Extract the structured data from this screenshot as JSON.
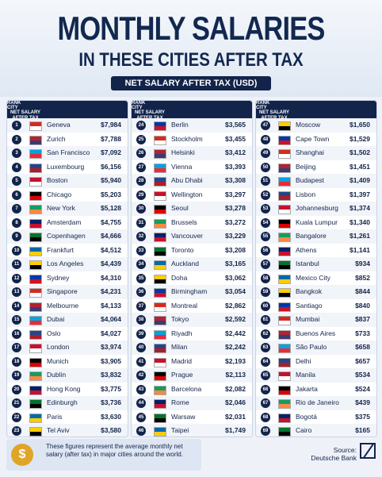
{
  "header": {
    "title": "MONTHLY SALARIES",
    "subtitle": "IN THESE CITIES AFTER TAX",
    "banner": "NET SALARY AFTER TAX (USD)"
  },
  "table": {
    "header": [
      "RANK",
      "CITY",
      "NET SALARY AFTER TAX (USD)"
    ],
    "columns": [
      [
        [
          1,
          "Geneva",
          "$7,984"
        ],
        [
          2,
          "Zurich",
          "$7,788"
        ],
        [
          3,
          "San Francisco",
          "$7,092"
        ],
        [
          4,
          "Luxembourg",
          "$6,156"
        ],
        [
          5,
          "Boston",
          "$5,940"
        ],
        [
          6,
          "Chicago",
          "$5,203"
        ],
        [
          7,
          "New York",
          "$5,128"
        ],
        [
          8,
          "Amsterdam",
          "$4,755"
        ],
        [
          9,
          "Copenhagen",
          "$4,666"
        ],
        [
          10,
          "Frankfurt",
          "$4,512"
        ],
        [
          11,
          "Los Angeles",
          "$4,439"
        ],
        [
          12,
          "Sydney",
          "$4,310"
        ],
        [
          13,
          "Singapore",
          "$4,231"
        ],
        [
          14,
          "Melbourne",
          "$4,133"
        ],
        [
          15,
          "Dubai",
          "$4,064"
        ],
        [
          16,
          "Oslo",
          "$4,027"
        ],
        [
          17,
          "London",
          "$3,974"
        ],
        [
          18,
          "Munich",
          "$3,905"
        ],
        [
          19,
          "Dublin",
          "$3,832"
        ],
        [
          20,
          "Hong Kong",
          "$3,775"
        ],
        [
          21,
          "Edinburgh",
          "$3,736"
        ],
        [
          22,
          "Paris",
          "$3,630"
        ],
        [
          23,
          "Tel Aviv",
          "$3,580"
        ]
      ],
      [
        [
          24,
          "Berlin",
          "$3,565"
        ],
        [
          25,
          "Stockholm",
          "$3,455"
        ],
        [
          26,
          "Helsinki",
          "$3,412"
        ],
        [
          27,
          "Vienna",
          "$3,393"
        ],
        [
          28,
          "Abu Dhabi",
          "$3,308"
        ],
        [
          29,
          "Wellington",
          "$3,297"
        ],
        [
          30,
          "Seoul",
          "$3,278"
        ],
        [
          31,
          "Brussels",
          "$3,272"
        ],
        [
          32,
          "Vancouver",
          "$3,229"
        ],
        [
          33,
          "Toronto",
          "$3,208"
        ],
        [
          34,
          "Auckland",
          "$3,165"
        ],
        [
          35,
          "Doha",
          "$3,062"
        ],
        [
          36,
          "Birmingham",
          "$3,054"
        ],
        [
          37,
          "Montreal",
          "$2,862"
        ],
        [
          38,
          "Tokyo",
          "$2,592"
        ],
        [
          39,
          "Riyadh",
          "$2,442"
        ],
        [
          40,
          "Milan",
          "$2,242"
        ],
        [
          41,
          "Madrid",
          "$2,193"
        ],
        [
          42,
          "Prague",
          "$2,113"
        ],
        [
          43,
          "Barcelona",
          "$2,082"
        ],
        [
          44,
          "Rome",
          "$2,046"
        ],
        [
          45,
          "Warsaw",
          "$2,031"
        ],
        [
          46,
          "Taipei",
          "$1,749"
        ]
      ],
      [
        [
          47,
          "Moscow",
          "$1,650"
        ],
        [
          48,
          "Cape Town",
          "$1,529"
        ],
        [
          49,
          "Shanghai",
          "$1,502"
        ],
        [
          50,
          "Beijing",
          "$1,451"
        ],
        [
          51,
          "Budapest",
          "$1,409"
        ],
        [
          52,
          "Lisbon",
          "$1,397"
        ],
        [
          53,
          "Johannesburg",
          "$1,374"
        ],
        [
          54,
          "Kuala Lumpur",
          "$1,340"
        ],
        [
          55,
          "Bangalore",
          "$1,261"
        ],
        [
          56,
          "Athens",
          "$1,141"
        ],
        [
          57,
          "Istanbul",
          "$934"
        ],
        [
          58,
          "Mexico City",
          "$852"
        ],
        [
          59,
          "Bangkok",
          "$844"
        ],
        [
          60,
          "Santiago",
          "$840"
        ],
        [
          61,
          "Mumbai",
          "$837"
        ],
        [
          62,
          "Buenos Aires",
          "$733"
        ],
        [
          63,
          "São Paulo",
          "$658"
        ],
        [
          64,
          "Delhi",
          "$657"
        ],
        [
          65,
          "Manila",
          "$534"
        ],
        [
          66,
          "Jakarta",
          "$524"
        ],
        [
          67,
          "Rio de Janeiro",
          "$439"
        ],
        [
          68,
          "Bogotá",
          "$375"
        ],
        [
          69,
          "Cairo",
          "$165"
        ]
      ]
    ]
  },
  "footer": {
    "note": "These figures represent the average monthly net salary (after tax) in major cities around the world.",
    "source_label": "Source:",
    "source": "Deutsche Bank"
  }
}
